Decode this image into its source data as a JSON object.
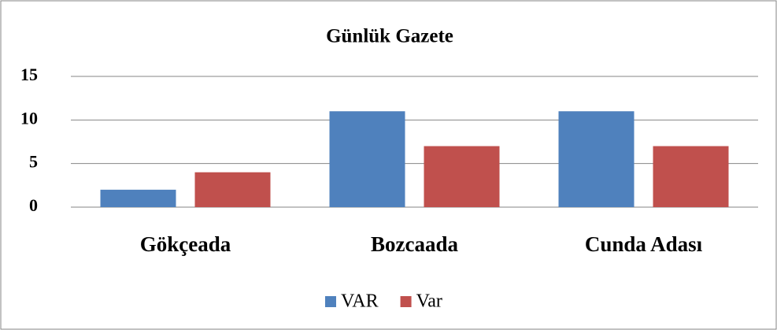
{
  "chart_data": {
    "type": "bar",
    "title": "Günlük Gazete",
    "categories": [
      "Gökçeada",
      "Bozcaada",
      "Cunda Adası"
    ],
    "series": [
      {
        "name": "VAR",
        "color": "#4f81bd",
        "values": [
          2,
          11,
          11
        ]
      },
      {
        "name": "Var",
        "color": "#c0504d",
        "values": [
          4,
          7,
          7
        ]
      }
    ],
    "ylim": [
      0,
      15
    ],
    "yticks": [
      0,
      5,
      10,
      15
    ],
    "grid": true,
    "legend": "bottom"
  }
}
